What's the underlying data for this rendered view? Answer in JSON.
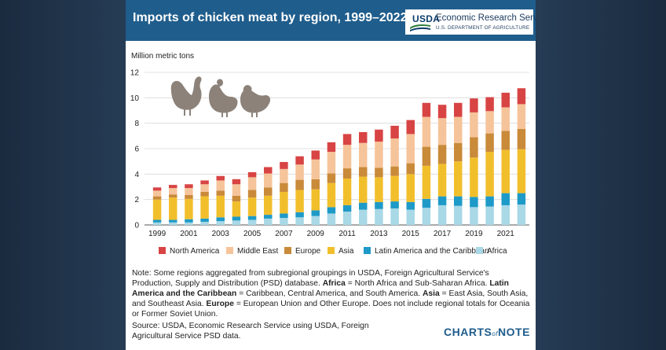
{
  "header": {
    "title": "Imports of chicken meat by region, 1999–2022",
    "usda": "USDA",
    "agency": "Economic Research Service",
    "department": "U.S. DEPARTMENT OF AGRICULTURE"
  },
  "note": {
    "prefix": "Note: Some regions aggregated from subregional groupings in USDA, Foreign Agricultural Service's Production, Supply and Distribution (PSD) database. ",
    "africa_term": "Africa",
    "africa_def": " = North Africa and Sub-Saharan Africa. ",
    "latam_term": "Latin America and the Caribbean",
    "latam_def": " = Caribbean, Central America, and South America. ",
    "asia_term": "Asia",
    "asia_def": " = East Asia, South Asia, and Southeast Asia. ",
    "europe_term": "Europe",
    "europe_def": " = European Union and Other Europe. Does not include regional totals for Oceania or Former Soviet Union."
  },
  "source": "Source: USDA, Economic Research Service using USDA, Foreign Agricultural Service PSD data.",
  "branding": {
    "main": "CHARTS",
    "of": "of",
    "end": "NOTE"
  },
  "colors": {
    "header": "#1f5d8c",
    "africa": "#a9d8e6",
    "latin_america": "#1e9ac8",
    "asia": "#f2bf2c",
    "europe": "#c98a3a",
    "middle_east": "#f6c49a",
    "north_america": "#d84444",
    "chicken_icon": "#8c8279"
  },
  "chart_data": {
    "type": "bar",
    "stacked": true,
    "ylabel": "Million metric tons",
    "xlabel": "",
    "ylim": [
      0,
      12
    ],
    "yticks": [
      0,
      2,
      4,
      6,
      8,
      10,
      12
    ],
    "xtick_labels": [
      "1999",
      "2001",
      "2003",
      "2005",
      "2007",
      "2009",
      "2011",
      "2013",
      "2015",
      "2017",
      "2019",
      "2021"
    ],
    "grid": true,
    "legend_position": "bottom",
    "categories": [
      "1999",
      "2000",
      "2001",
      "2002",
      "2003",
      "2004",
      "2005",
      "2006",
      "2007",
      "2008",
      "2009",
      "2010",
      "2011",
      "2012",
      "2013",
      "2014",
      "2015",
      "2016",
      "2017",
      "2018",
      "2019",
      "2020",
      "2021",
      "2022"
    ],
    "series": [
      {
        "name": "Africa",
        "values": [
          0.2,
          0.2,
          0.2,
          0.25,
          0.3,
          0.35,
          0.4,
          0.5,
          0.55,
          0.6,
          0.7,
          0.9,
          1.05,
          1.2,
          1.25,
          1.3,
          1.2,
          1.35,
          1.55,
          1.5,
          1.4,
          1.45,
          1.55,
          1.6
        ]
      },
      {
        "name": "Latin America and the Caribbean",
        "values": [
          0.2,
          0.2,
          0.25,
          0.25,
          0.3,
          0.3,
          0.3,
          0.3,
          0.35,
          0.4,
          0.45,
          0.5,
          0.5,
          0.55,
          0.55,
          0.55,
          0.6,
          0.7,
          0.7,
          0.75,
          0.8,
          0.8,
          0.95,
          0.9
        ]
      },
      {
        "name": "Asia",
        "values": [
          1.6,
          1.75,
          1.6,
          1.75,
          1.7,
          1.2,
          1.45,
          1.5,
          1.7,
          1.75,
          1.65,
          1.9,
          2.1,
          2.05,
          1.95,
          2.0,
          2.2,
          2.6,
          2.55,
          2.75,
          3.1,
          3.5,
          3.4,
          3.45
        ]
      },
      {
        "name": "Europe",
        "values": [
          0.25,
          0.25,
          0.3,
          0.35,
          0.4,
          0.45,
          0.6,
          0.65,
          0.7,
          0.8,
          0.8,
          0.75,
          0.8,
          0.75,
          0.75,
          0.75,
          0.85,
          1.5,
          1.5,
          1.45,
          1.6,
          1.45,
          1.5,
          1.6
        ]
      },
      {
        "name": "Middle East",
        "values": [
          0.45,
          0.5,
          0.55,
          0.6,
          0.8,
          0.9,
          1.0,
          1.1,
          1.1,
          1.2,
          1.55,
          1.7,
          1.85,
          1.9,
          2.05,
          2.2,
          2.3,
          2.35,
          2.1,
          2.05,
          1.95,
          1.75,
          1.85,
          1.95
        ]
      },
      {
        "name": "North America",
        "values": [
          0.25,
          0.25,
          0.3,
          0.3,
          0.35,
          0.4,
          0.4,
          0.5,
          0.55,
          0.65,
          0.7,
          0.75,
          0.85,
          0.85,
          0.95,
          1.0,
          1.1,
          1.1,
          1.05,
          1.1,
          1.1,
          1.1,
          1.15,
          1.25
        ]
      }
    ]
  }
}
